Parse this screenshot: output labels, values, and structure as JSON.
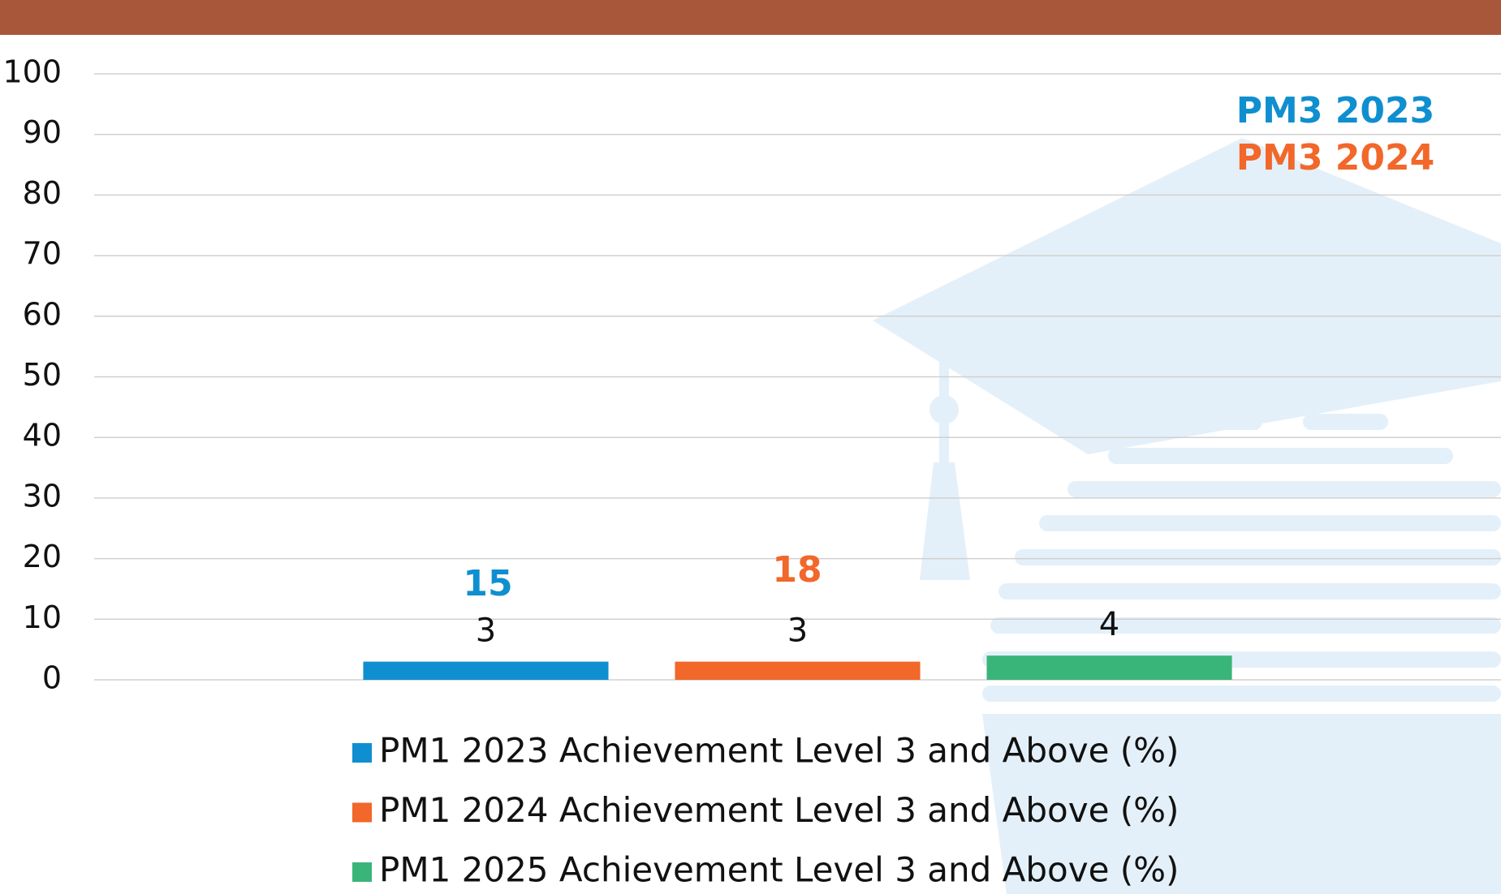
{
  "chart_data": {
    "type": "bar",
    "categories": [
      null
    ],
    "series": [
      {
        "name": "PM1 2023 Achievement Level 3 and Above (%)",
        "color": "#0f8fcf",
        "values": [
          3
        ]
      },
      {
        "name": "PM1 2024 Achievement Level 3 and Above (%)",
        "color": "#f2672a",
        "values": [
          3
        ]
      },
      {
        "name": "PM1 2025 Achievement Level 3 and Above (%)",
        "color": "#3ab57a",
        "values": [
          4
        ]
      }
    ],
    "ylim": [
      0,
      100
    ],
    "yticks": [
      0,
      10,
      20,
      30,
      40,
      50,
      60,
      70,
      80,
      90,
      100
    ],
    "grid": true,
    "legend": "bottom",
    "annotations": [
      {
        "text": "15",
        "color": "#0f8fcf"
      },
      {
        "text": "18",
        "color": "#f2672a"
      },
      {
        "text": "PM3 2023",
        "color": "#0f8fcf"
      },
      {
        "text": "PM3 2024",
        "color": "#f2672a"
      }
    ]
  }
}
